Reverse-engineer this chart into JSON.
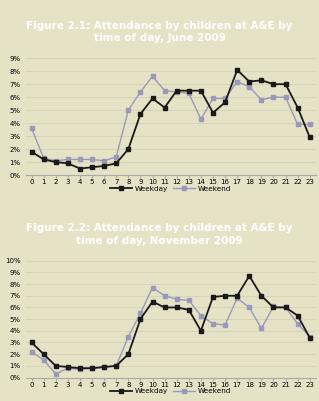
{
  "fig1": {
    "title": "Figure 2.1: Attendance by children at A&E by\ntime of day, June 2009",
    "weekday": [
      1.8,
      1.2,
      1.0,
      0.9,
      0.5,
      0.6,
      0.7,
      0.9,
      2.0,
      4.7,
      5.9,
      5.2,
      6.5,
      6.5,
      6.5,
      4.8,
      5.6,
      8.1,
      7.2,
      7.3,
      7.0,
      7.0,
      5.2,
      2.9
    ],
    "weekend": [
      3.6,
      1.3,
      1.1,
      1.2,
      1.2,
      1.2,
      1.1,
      1.4,
      5.0,
      6.4,
      7.6,
      6.5,
      6.4,
      6.3,
      4.3,
      5.9,
      5.9,
      7.2,
      6.8,
      5.8,
      6.0,
      6.0,
      3.9,
      3.9
    ],
    "ylim": [
      0,
      9
    ],
    "yticks": [
      0,
      1,
      2,
      3,
      4,
      5,
      6,
      7,
      8,
      9
    ],
    "ytick_labels": [
      "0%",
      "1%",
      "2%",
      "3%",
      "4%",
      "5%",
      "6%",
      "7%",
      "8%",
      "9%"
    ]
  },
  "fig2": {
    "title": "Figure 2.2: Attendance by children at A&E by\ntime of day, November 2009",
    "weekday": [
      3.0,
      2.0,
      1.0,
      0.9,
      0.8,
      0.8,
      0.9,
      1.0,
      2.0,
      5.0,
      6.5,
      6.0,
      6.0,
      5.8,
      4.0,
      6.9,
      7.0,
      7.0,
      8.7,
      7.0,
      6.0,
      6.0,
      5.3,
      3.4
    ],
    "weekend": [
      2.2,
      1.5,
      0.3,
      0.8,
      0.7,
      0.8,
      0.9,
      1.0,
      3.5,
      5.5,
      7.7,
      7.0,
      6.7,
      6.6,
      5.3,
      4.6,
      4.5,
      6.8,
      6.0,
      4.2,
      6.1,
      6.0,
      4.6,
      3.5
    ],
    "ylim": [
      0,
      10
    ],
    "yticks": [
      0,
      1,
      2,
      3,
      4,
      5,
      6,
      7,
      8,
      9,
      10
    ],
    "ytick_labels": [
      "0%",
      "1%",
      "2%",
      "3%",
      "4%",
      "5%",
      "6%",
      "7%",
      "8%",
      "9%",
      "10%"
    ]
  },
  "x": [
    0,
    1,
    2,
    3,
    4,
    5,
    6,
    7,
    8,
    9,
    10,
    11,
    12,
    13,
    14,
    15,
    16,
    17,
    18,
    19,
    20,
    21,
    22,
    23
  ],
  "title_bg_color": "#8B7B45",
  "plot_bg_color": "#E6E2C6",
  "outer_bg_color": "#E6E2C6",
  "weekday_color": "#1a1a1a",
  "weekend_color": "#9999bb",
  "title_color": "#ffffff",
  "grid_color": "#d8d4b8",
  "legend_weekday": "Weekday",
  "legend_weekend": "Weekend",
  "spine_color": "#aaaaaa",
  "tick_fontsize": 5.0,
  "title_fontsize": 7.5
}
